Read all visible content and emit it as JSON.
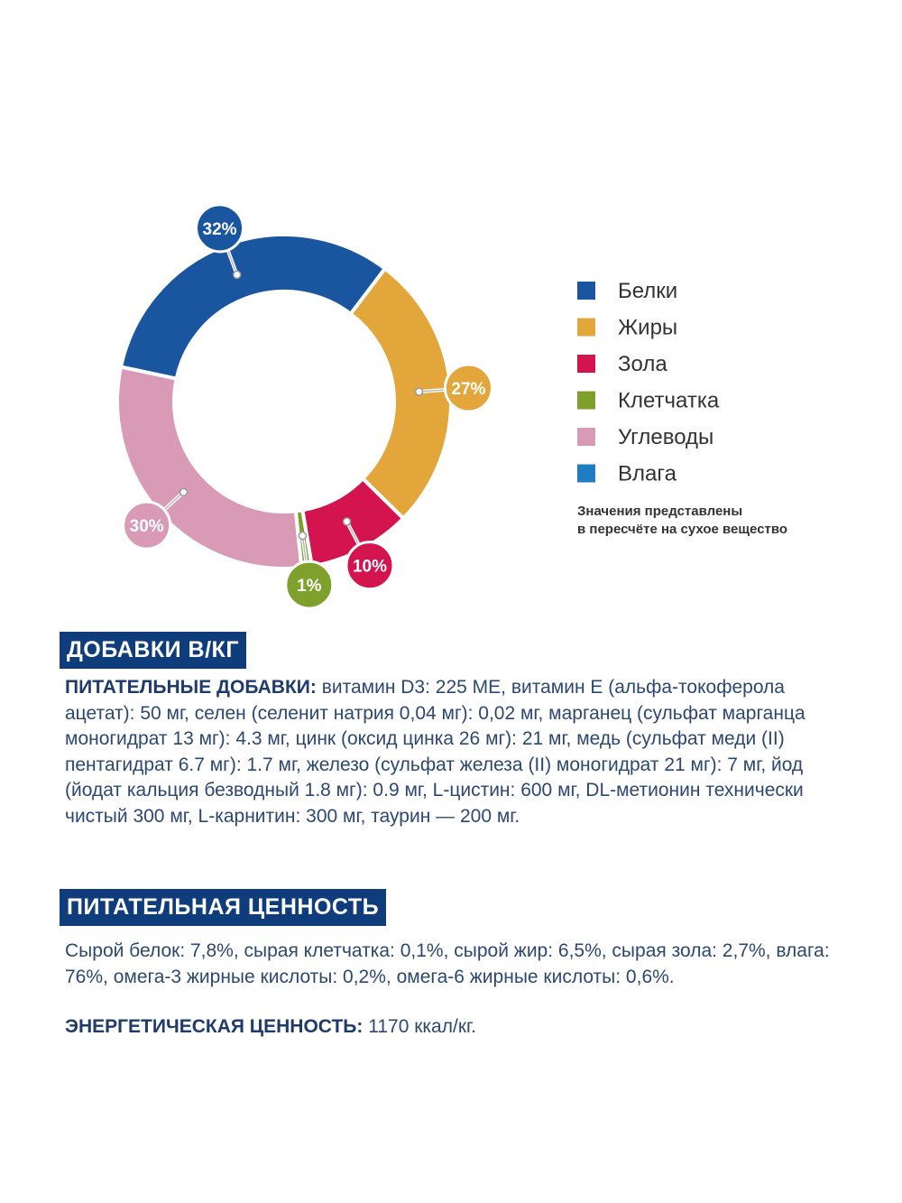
{
  "chart_data": {
    "type": "donut",
    "categories": [
      "Белки",
      "Жиры",
      "Зола",
      "Клетчатка",
      "Углеводы",
      "Влага"
    ],
    "values": [
      32,
      27,
      10,
      1,
      30,
      null
    ],
    "value_labels": [
      "32%",
      "27%",
      "10%",
      "1%",
      "30%",
      null
    ],
    "colors": [
      "#1a559f",
      "#e2a63a",
      "#d3144f",
      "#7fa12b",
      "#d99ab6",
      "#1f7dc2"
    ],
    "note": [
      "Значения представлены",
      "в пересчёте на сухое вещество"
    ]
  },
  "supplements": {
    "title": "ДОБАВКИ В/КГ",
    "lead": "ПИТАТЕЛЬНЫЕ ДОБАВКИ:",
    "text": "витамин D3: 225 МЕ, витамин Е (альфа-токоферола ацетат): 50 мг, селен (селенит натрия 0,04 мг): 0,02 мг, марганец (сульфат марганца моногидрат 13 мг): 4.3 мг, цинк (оксид цинка 26 мг): 21 мг, медь (сульфат меди (II) пентагидрат 6.7 мг): 1.7 мг, железо (сульфат железа (II) моногидрат 21 мг): 7 мг, йод (йодат кальция безводный 1.8 мг): 0.9 мг, L-цистин: 600 мг, DL-метионин технически чистый 300 мг, L-карнитин: 300 мг, таурин — 200 мг."
  },
  "nutrition": {
    "title": "ПИТАТЕЛЬНАЯ ЦЕННОСТЬ",
    "text": "Сырой белок: 7,8%, сырая клетчатка: 0,1%, сырой жир: 6,5%, сырая зола: 2,7%, влага: 76%, омега-3 жирные кислоты: 0,2%, омега-6 жирные кислоты: 0,6%.",
    "energy_lead": "ЭНЕРГЕТИЧЕСКАЯ ЦЕННОСТЬ:",
    "energy_text": "1170 ккал/кг."
  }
}
